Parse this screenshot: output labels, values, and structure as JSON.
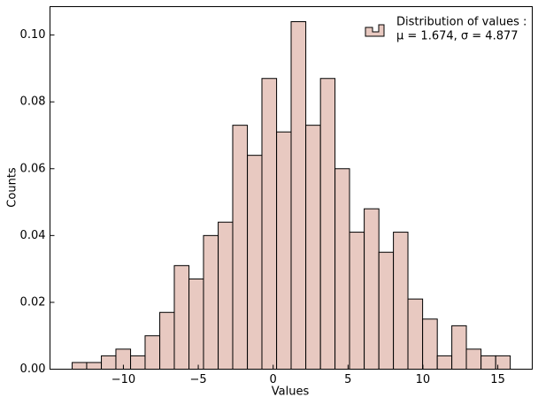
{
  "chart_data": {
    "type": "histogram",
    "xlabel": "Values",
    "ylabel": "Counts",
    "bins": [
      -13.42,
      -12.45,
      -11.47,
      -10.5,
      -9.52,
      -8.55,
      -7.57,
      -6.6,
      -5.62,
      -4.65,
      -3.67,
      -2.7,
      -1.72,
      -0.75,
      0.23,
      1.2,
      2.18,
      3.16,
      4.13,
      5.1,
      6.08,
      7.06,
      8.03,
      9.0,
      9.98,
      10.96,
      11.93,
      12.9,
      13.88,
      14.86,
      15.83
    ],
    "counts": [
      0.002,
      0.002,
      0.004,
      0.006,
      0.004,
      0.01,
      0.017,
      0.031,
      0.027,
      0.04,
      0.044,
      0.073,
      0.064,
      0.087,
      0.071,
      0.104,
      0.073,
      0.087,
      0.06,
      0.041,
      0.048,
      0.035,
      0.041,
      0.021,
      0.015,
      0.004,
      0.013,
      0.006,
      0.004,
      0.004
    ],
    "color": "#e8c9c1",
    "edgecolor": "#000000",
    "xlim": [
      -14.9,
      17.3
    ],
    "ylim": [
      0,
      0.1085
    ],
    "xticks": [
      {
        "value": -10,
        "label": "−10"
      },
      {
        "value": -5,
        "label": "−5"
      },
      0,
      5,
      10,
      15
    ],
    "yticks": [
      {
        "value": 0,
        "label": "0.00"
      },
      {
        "value": 0.02,
        "label": "0.02"
      },
      {
        "value": 0.04,
        "label": "0.04"
      },
      {
        "value": 0.06,
        "label": "0.06"
      },
      {
        "value": 0.08,
        "label": "0.08"
      },
      {
        "value": 0.1,
        "label": "0.10"
      }
    ],
    "legend": {
      "loc": "upper right",
      "lines": [
        "Distribution of values :",
        "μ = 1.674, σ = 4.877"
      ]
    }
  }
}
